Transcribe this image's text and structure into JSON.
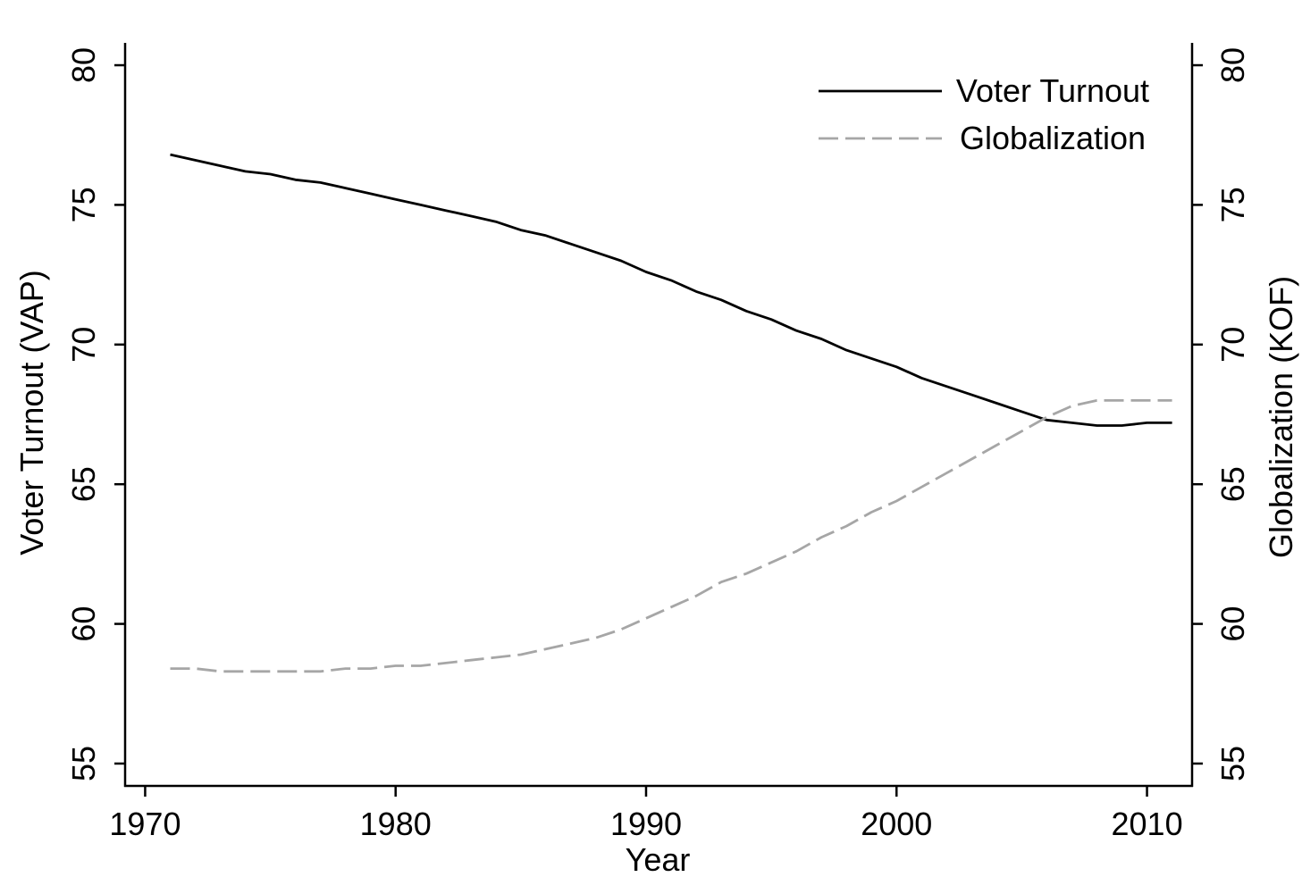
{
  "chart_data": {
    "type": "line",
    "xlabel": "Year",
    "ylabel": "Voter Turnout (VAP)",
    "y2label": "Globalization (KOF)",
    "xlim": [
      1969.2,
      2011.8
    ],
    "ylim": [
      54.2,
      80.8
    ],
    "y2lim": [
      54.2,
      80.8
    ],
    "xticks": [
      1970,
      1980,
      1990,
      2000,
      2010
    ],
    "yticks": [
      55,
      60,
      65,
      70,
      75,
      80
    ],
    "y2ticks": [
      55,
      60,
      65,
      70,
      75,
      80
    ],
    "grid": false,
    "legend_position": "top-right",
    "x": [
      1971,
      1972,
      1973,
      1974,
      1975,
      1976,
      1977,
      1978,
      1979,
      1980,
      1981,
      1982,
      1983,
      1984,
      1985,
      1986,
      1987,
      1988,
      1989,
      1990,
      1991,
      1992,
      1993,
      1994,
      1995,
      1996,
      1997,
      1998,
      1999,
      2000,
      2001,
      2002,
      2003,
      2004,
      2005,
      2006,
      2007,
      2008,
      2009,
      2010,
      2011
    ],
    "series": [
      {
        "name": "Voter Turnout",
        "axis": "left",
        "color": "#000000",
        "dash": "solid",
        "values": [
          76.8,
          76.6,
          76.4,
          76.2,
          76.1,
          75.9,
          75.8,
          75.6,
          75.4,
          75.2,
          75.0,
          74.8,
          74.6,
          74.4,
          74.1,
          73.9,
          73.6,
          73.3,
          73.0,
          72.6,
          72.3,
          71.9,
          71.6,
          71.2,
          70.9,
          70.5,
          70.2,
          69.8,
          69.5,
          69.2,
          68.8,
          68.5,
          68.2,
          67.9,
          67.6,
          67.3,
          67.2,
          67.1,
          67.1,
          67.2,
          67.2
        ]
      },
      {
        "name": "Globalization",
        "axis": "right",
        "color": "#a6a6a6",
        "dash": "dashed",
        "values": [
          58.4,
          58.4,
          58.3,
          58.3,
          58.3,
          58.3,
          58.3,
          58.4,
          58.4,
          58.5,
          58.5,
          58.6,
          58.7,
          58.8,
          58.9,
          59.1,
          59.3,
          59.5,
          59.8,
          60.2,
          60.6,
          61.0,
          61.5,
          61.8,
          62.2,
          62.6,
          63.1,
          63.5,
          64.0,
          64.4,
          64.9,
          65.4,
          65.9,
          66.4,
          66.9,
          67.4,
          67.8,
          68.0,
          68.0,
          68.0,
          68.0
        ]
      }
    ]
  }
}
